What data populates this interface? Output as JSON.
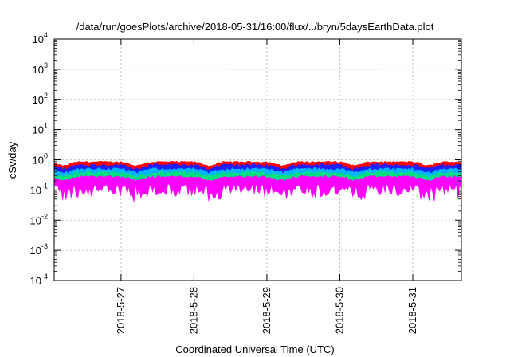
{
  "chart_data": {
    "type": "area",
    "title": "/data/run/goesPlots/archive/2018-05-31/16:00/flux/../bryn/5daysEarthData.plot",
    "xlabel": "Coordinated Universal Time (UTC)",
    "ylabel": "cSv/day",
    "yscale": "log",
    "ylim": [
      0.0001,
      10000
    ],
    "y_ticks": [
      {
        "value": 0.0001,
        "base": "10",
        "exp": "-4"
      },
      {
        "value": 0.001,
        "base": "10",
        "exp": "-3"
      },
      {
        "value": 0.01,
        "base": "10",
        "exp": "-2"
      },
      {
        "value": 0.1,
        "base": "10",
        "exp": "-1"
      },
      {
        "value": 1,
        "base": "10",
        "exp": "0"
      },
      {
        "value": 10,
        "base": "10",
        "exp": "1"
      },
      {
        "value": 100,
        "base": "10",
        "exp": "2"
      },
      {
        "value": 1000,
        "base": "10",
        "exp": "3"
      },
      {
        "value": 10000,
        "base": "10",
        "exp": "4"
      }
    ],
    "xlim": [
      "2018-05-26 02:00",
      "2018-05-31 16:00"
    ],
    "x_ticks": [
      "2018-5-27",
      "2018-5-28",
      "2018-5-29",
      "2018-5-30",
      "2018-5-31"
    ],
    "grid": true,
    "series": [
      {
        "color": "#ff0000",
        "upper": [
          0.8,
          0.9
        ],
        "lower": [
          0.3,
          0.4
        ]
      },
      {
        "color": "#1e1eff",
        "upper": [
          0.6,
          0.75
        ],
        "lower": [
          0.22,
          0.3
        ]
      },
      {
        "color": "#00b4ff",
        "upper": [
          0.45,
          0.55
        ],
        "lower": [
          0.2,
          0.26
        ]
      },
      {
        "color": "#00e080",
        "upper": [
          0.33,
          0.42
        ],
        "lower": [
          0.2,
          0.25
        ]
      },
      {
        "color": "#ff00ff",
        "upper": [
          0.25,
          0.3
        ],
        "lower": [
          0.05,
          0.16
        ]
      }
    ]
  }
}
